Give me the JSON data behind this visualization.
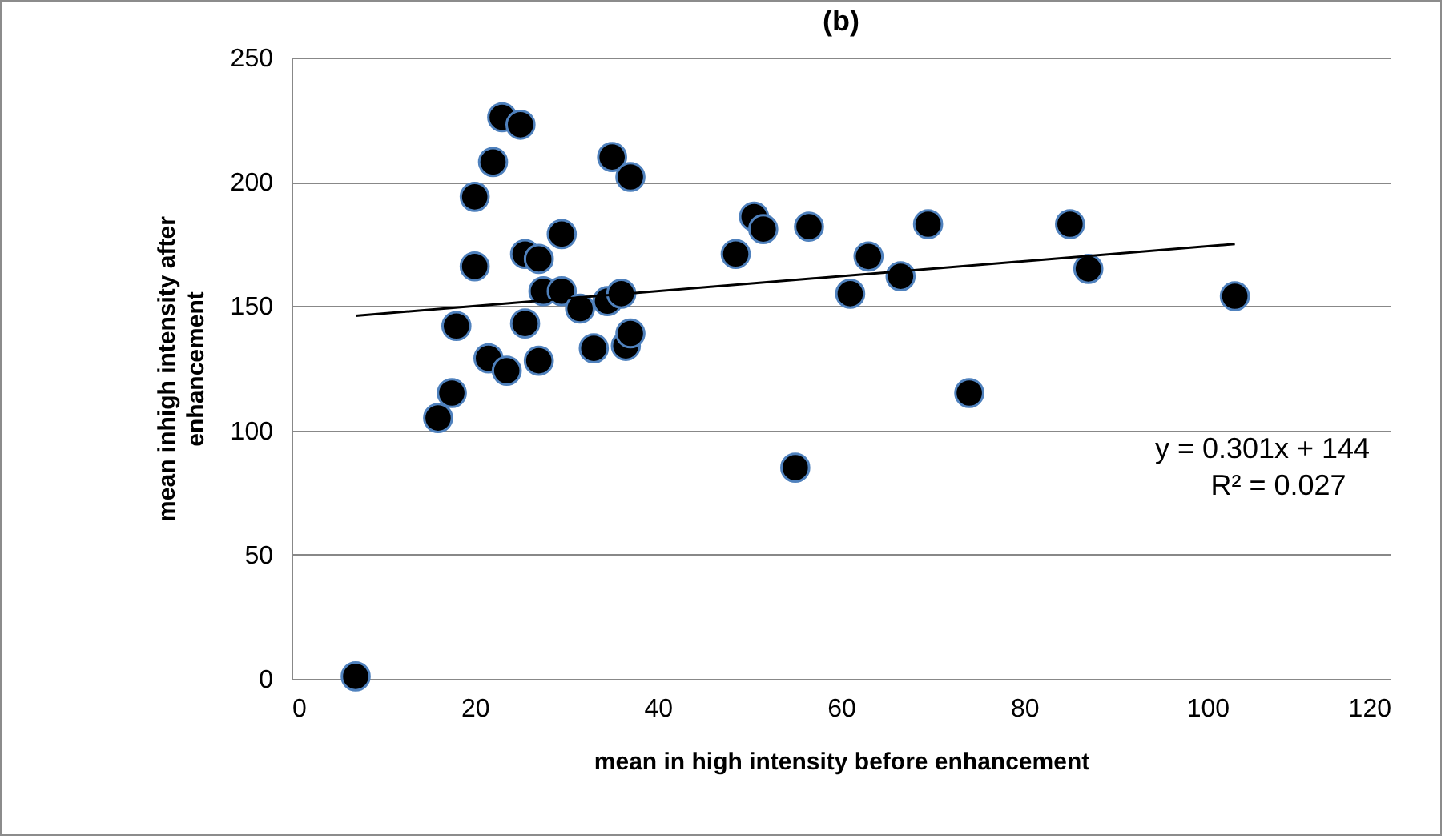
{
  "chart_data": {
    "type": "scatter",
    "title": "(b)",
    "xlabel": "mean in high  intensity before enhancement",
    "ylabel": "mean  inhigh intensity after\nenhancement",
    "xlim": [
      0,
      120
    ],
    "xticks": [
      0,
      20,
      40,
      60,
      80,
      100,
      120
    ],
    "ylim": [
      0,
      250
    ],
    "yticks": [
      0,
      50,
      100,
      150,
      200,
      250
    ],
    "grid": "y",
    "legend": false,
    "marker": "circle",
    "series": [
      {
        "type": "scatter",
        "color": "#000000",
        "x": [
          7,
          16,
          17.5,
          18,
          20,
          20,
          21.5,
          22,
          23,
          23.5,
          25,
          25.5,
          25.5,
          27,
          27,
          27.5,
          29.5,
          29.5,
          31.5,
          33,
          34,
          34.5,
          35,
          36,
          36.5,
          37,
          37,
          48.5,
          50.5,
          51,
          51.5,
          55,
          56.5,
          61,
          63,
          66.5,
          69.5,
          74,
          85,
          87,
          103
        ],
        "values": [
          1,
          105,
          115,
          142,
          166,
          194,
          129,
          208,
          226,
          124,
          223,
          171,
          143,
          169,
          128,
          156,
          179,
          156,
          149,
          133,
          null,
          152,
          210,
          155,
          134,
          139,
          202,
          171,
          186,
          null,
          181,
          85,
          182,
          155,
          170,
          162,
          183,
          115,
          183,
          165,
          154
        ]
      },
      {
        "type": "line",
        "color": "#000000",
        "marker": "none",
        "line_style": "solid",
        "x": [
          7,
          103
        ],
        "values": [
          146.1,
          175.0
        ]
      }
    ],
    "annotations": [
      "y = 0.301x + 144",
      "R² = 0.027"
    ]
  }
}
